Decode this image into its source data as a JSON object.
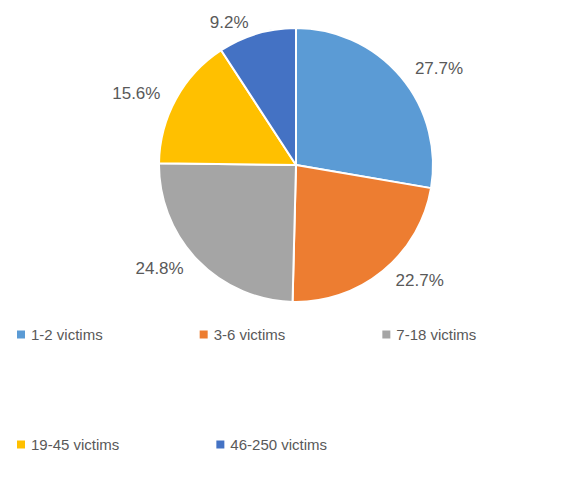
{
  "chart_data": {
    "type": "pie",
    "categories": [
      "1-2 victims",
      "3-6 victims",
      "7-18 victims",
      "19-45 victims",
      "46-250 victims"
    ],
    "values": [
      27.7,
      22.7,
      24.8,
      15.6,
      9.2
    ],
    "value_labels": [
      "27.7%",
      "22.7%",
      "24.8%",
      "15.6%",
      "9.2%"
    ],
    "colors": [
      "#5b9bd5",
      "#ed7d31",
      "#a5a5a5",
      "#ffc000",
      "#4472c4"
    ],
    "data_labels": true,
    "legend": "bottom"
  }
}
